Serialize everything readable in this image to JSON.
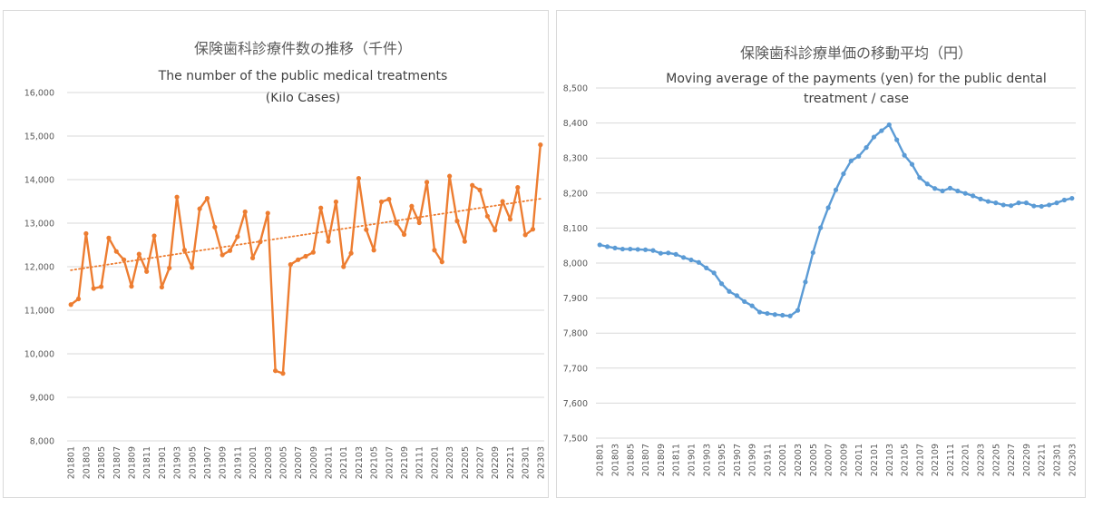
{
  "chart_data": [
    {
      "type": "line",
      "title_ja": "保険歯科診療件数の推移（千件）",
      "title_en_line1": "The number of the public medical treatments",
      "title_en_line2": "(Kilo Cases)",
      "ylim": [
        8000,
        16000
      ],
      "yticks": [
        8000,
        9000,
        10000,
        11000,
        12000,
        13000,
        14000,
        15000,
        16000
      ],
      "ytick_labels": [
        "8,000",
        "9,000",
        "10,000",
        "11,000",
        "12,000",
        "13,000",
        "14,000",
        "15,000",
        "16,000"
      ],
      "xtick_labels": [
        "201801",
        "201803",
        "201805",
        "201807",
        "201809",
        "201811",
        "201901",
        "201903",
        "201905",
        "201907",
        "201909",
        "201911",
        "202001",
        "202003",
        "202005",
        "202007",
        "202009",
        "202011",
        "202101",
        "202103",
        "202105",
        "202107",
        "202109",
        "202111",
        "202201",
        "202203",
        "202205",
        "202207",
        "202209",
        "202211",
        "202301",
        "202303"
      ],
      "x": [
        "201801",
        "201802",
        "201803",
        "201804",
        "201805",
        "201806",
        "201807",
        "201808",
        "201809",
        "201810",
        "201811",
        "201812",
        "201901",
        "201902",
        "201903",
        "201904",
        "201905",
        "201906",
        "201907",
        "201908",
        "201909",
        "201910",
        "201911",
        "201912",
        "202001",
        "202002",
        "202003",
        "202004",
        "202005",
        "202006",
        "202007",
        "202008",
        "202009",
        "202010",
        "202011",
        "202012",
        "202101",
        "202102",
        "202103",
        "202104",
        "202105",
        "202106",
        "202107",
        "202108",
        "202109",
        "202110",
        "202111",
        "202112",
        "202201",
        "202202",
        "202203",
        "202204",
        "202205",
        "202206",
        "202207",
        "202208",
        "202209",
        "202210",
        "202211",
        "202212",
        "202301",
        "202302",
        "202303"
      ],
      "series": [
        {
          "values": [
            11130,
            11260,
            12760,
            11500,
            11540,
            12660,
            12350,
            12160,
            11550,
            12290,
            11890,
            12710,
            11530,
            11970,
            13600,
            12380,
            11980,
            13330,
            13570,
            12910,
            12270,
            12370,
            12690,
            13260,
            12200,
            12570,
            13230,
            9610,
            9550,
            12050,
            12160,
            12240,
            12330,
            13350,
            12580,
            13490,
            12000,
            12310,
            14030,
            12850,
            12380,
            13490,
            13550,
            13000,
            12740,
            13390,
            13010,
            13940,
            12380,
            12110,
            14080,
            13050,
            12580,
            13870,
            13760,
            13160,
            12840,
            13500,
            13090,
            13820,
            12730,
            12860,
            14800
          ],
          "color": "#ed7d31",
          "trendline": {
            "style": "dotted",
            "start": 11920,
            "end": 13560
          }
        }
      ]
    },
    {
      "type": "line",
      "title_ja": "保険歯科診療単価の移動平均（円）",
      "title_en_line1": "Moving average of the payments (yen) for the public dental",
      "title_en_line2": "treatment / case",
      "ylim": [
        7500,
        8500
      ],
      "yticks": [
        7500,
        7600,
        7700,
        7800,
        7900,
        8000,
        8100,
        8200,
        8300,
        8400,
        8500
      ],
      "ytick_labels": [
        "7,500",
        "7,600",
        "7,700",
        "7,800",
        "7,900",
        "8,000",
        "8,100",
        "8,200",
        "8,300",
        "8,400",
        "8,500"
      ],
      "xtick_labels": [
        "201801",
        "201803",
        "201805",
        "201807",
        "201809",
        "201811",
        "201901",
        "201903",
        "201905",
        "201907",
        "201909",
        "201911",
        "202001",
        "202003",
        "202005",
        "202007",
        "202009",
        "202011",
        "202101",
        "202103",
        "202105",
        "202107",
        "202109",
        "202111",
        "202201",
        "202203",
        "202205",
        "202207",
        "202209",
        "202211",
        "202301",
        "202303"
      ],
      "x": [
        "201801",
        "201802",
        "201803",
        "201804",
        "201805",
        "201806",
        "201807",
        "201808",
        "201809",
        "201810",
        "201811",
        "201812",
        "201901",
        "201902",
        "201903",
        "201904",
        "201905",
        "201906",
        "201907",
        "201908",
        "201909",
        "201910",
        "201911",
        "201912",
        "202001",
        "202002",
        "202003",
        "202004",
        "202005",
        "202006",
        "202007",
        "202008",
        "202009",
        "202010",
        "202011",
        "202012",
        "202101",
        "202102",
        "202103",
        "202104",
        "202105",
        "202106",
        "202107",
        "202108",
        "202109",
        "202110",
        "202111",
        "202112",
        "202201",
        "202202",
        "202203",
        "202204",
        "202205",
        "202206",
        "202207",
        "202208",
        "202209",
        "202210",
        "202211",
        "202212",
        "202301",
        "202302",
        "202303"
      ],
      "series": [
        {
          "values": [
            8052,
            8047,
            8043,
            8040,
            8040,
            8039,
            8038,
            8036,
            8028,
            8029,
            8025,
            8016,
            8009,
            8002,
            7986,
            7972,
            7941,
            7919,
            7907,
            7890,
            7878,
            7860,
            7856,
            7853,
            7851,
            7849,
            7865,
            7946,
            8030,
            8101,
            8158,
            8209,
            8255,
            8292,
            8305,
            8330,
            8360,
            8378,
            8395,
            8352,
            8308,
            8282,
            8244,
            8226,
            8213,
            8206,
            8214,
            8206,
            8199,
            8192,
            8183,
            8176,
            8172,
            8166,
            8164,
            8172,
            8172,
            8163,
            8162,
            8166,
            8172,
            8180,
            8185
          ],
          "color": "#5b9bd5"
        }
      ]
    }
  ],
  "colors": {
    "grid": "#d9d9d9",
    "axis_text": "#595959",
    "title_text": "#595959",
    "title_en_text": "#404040"
  }
}
